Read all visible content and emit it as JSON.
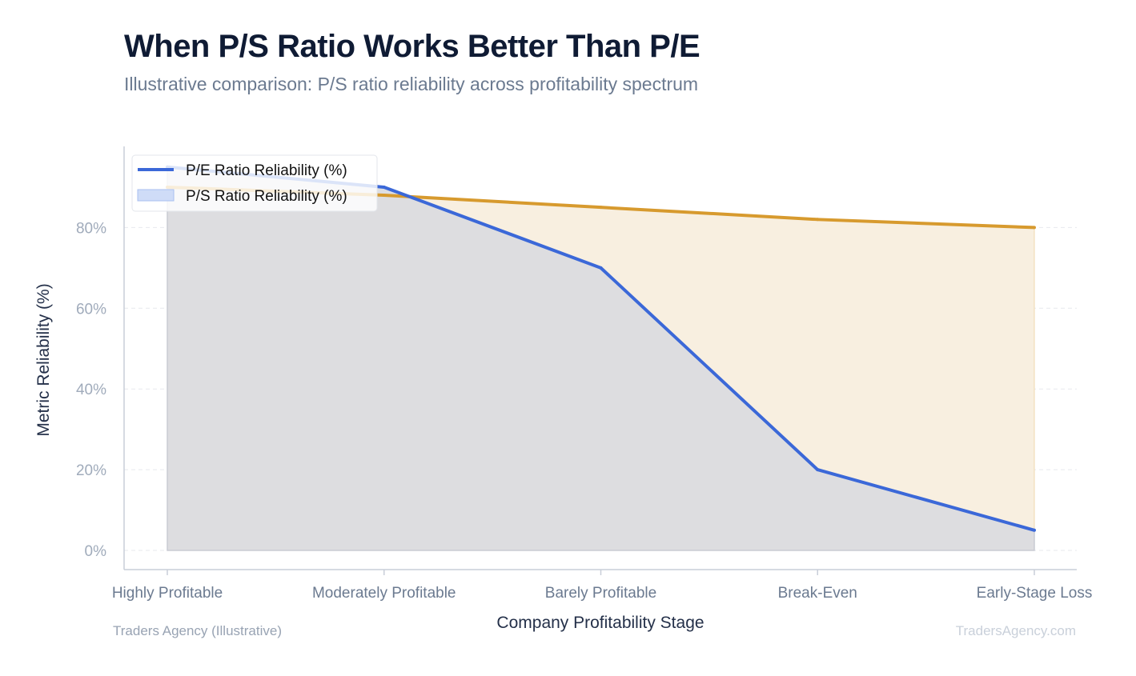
{
  "header": {
    "title": "When P/S Ratio Works Better Than P/E",
    "subtitle": "Illustrative comparison: P/S ratio reliability across profitability spectrum"
  },
  "footer": {
    "source": "Traders Agency (Illustrative)",
    "brand": "TradersAgency.com"
  },
  "colors": {
    "pe_line": "#3b68d8",
    "ps_line": "#d79a2e",
    "ps_fill": "#f8efe0",
    "pe_fill": "#dadbdf",
    "grid": "#e7e9ee",
    "axis": "#c8ced8"
  },
  "chart_data": {
    "type": "area",
    "title": "When P/S Ratio Works Better Than P/E",
    "subtitle": "Illustrative comparison: P/S ratio reliability across profitability spectrum",
    "xlabel": "Company Profitability Stage",
    "ylabel": "Metric Reliability (%)",
    "categories": [
      "Highly Profitable",
      "Moderately Profitable",
      "Barely Profitable",
      "Break-Even",
      "Early-Stage Loss"
    ],
    "ylim": [
      0,
      100
    ],
    "yticks": [
      0,
      20,
      40,
      60,
      80
    ],
    "ytick_labels": [
      "0%",
      "20%",
      "40%",
      "60%",
      "80%"
    ],
    "grid": true,
    "legend_position": "top-left",
    "series": [
      {
        "name": "P/E Ratio Reliability (%)",
        "values": [
          95,
          90,
          70,
          20,
          5
        ],
        "style": "line"
      },
      {
        "name": "P/S Ratio Reliability (%)",
        "values": [
          90,
          88,
          85,
          82,
          80
        ],
        "style": "area"
      }
    ]
  }
}
